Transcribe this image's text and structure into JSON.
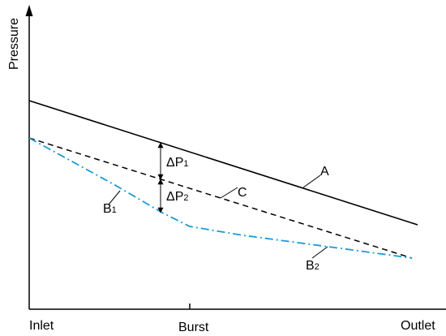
{
  "axes": {
    "y_label": "Pressure",
    "x_ticks": {
      "inlet": "Inlet",
      "burst": "Burst",
      "outlet": "Outlet"
    }
  },
  "curves": {
    "A": {
      "label": "A",
      "style": "solid",
      "color": "#000000"
    },
    "C": {
      "label": "C",
      "style": "dashed",
      "color": "#000000"
    },
    "B1": {
      "label": "B",
      "subscript": "1",
      "style": "dash-dot",
      "color": "#1a9ad6"
    },
    "B2": {
      "label": "B",
      "subscript": "2",
      "style": "dash-dot",
      "color": "#1a9ad6"
    }
  },
  "deltas": {
    "dp1": {
      "label": "ΔP",
      "subscript": "1"
    },
    "dp2": {
      "label": "ΔP",
      "subscript": "2"
    }
  },
  "colors": {
    "axis": "#000000",
    "blue_line": "#1a9ad6"
  }
}
